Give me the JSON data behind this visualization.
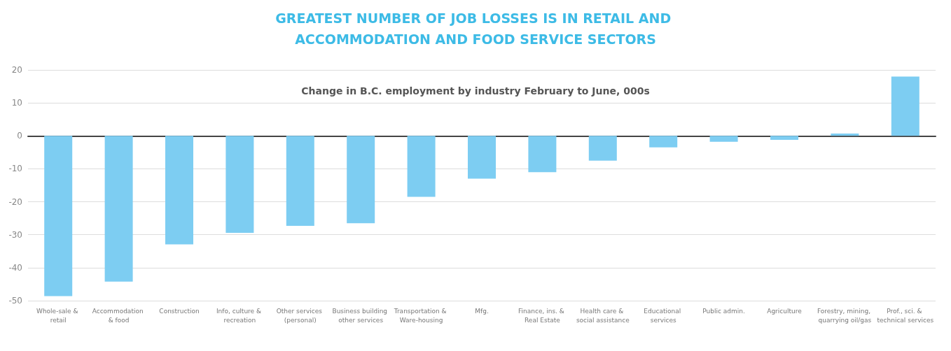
{
  "chart_data": {
    "type": "bar",
    "title": "GREATEST NUMBER OF JOB LOSSES IS IN RETAIL AND ACCOMMODATION AND FOOD SERVICE SECTORS",
    "subtitle": "Change in B.C. employment by industry February to June, 000s",
    "categories": [
      "Whole-sale & retail",
      "Accommodation & food",
      "Construction",
      "Info, culture & recreation",
      "Other services (personal)",
      "Business building other services",
      "Transportation & Ware-housing",
      "Mfg.",
      "Finance, ins. & Real Estate",
      "Health care & social assistance",
      "Educational services",
      "Public admin.",
      "Agriculture",
      "Forestry, mining, quarrying oil/gas",
      "Prof., sci. & technical services"
    ],
    "values": [
      -48.6,
      -44.2,
      -32.9,
      -29.4,
      -27.3,
      -26.5,
      -18.5,
      -13,
      -11,
      -7.5,
      -3.5,
      -1.8,
      -1.2,
      0.7,
      18
    ],
    "color": "#7dcdf2",
    "ylim": [
      -50,
      20
    ],
    "yticks": [
      -50,
      -40,
      -30,
      -20,
      -10,
      0,
      10,
      20
    ],
    "grid": "y"
  }
}
